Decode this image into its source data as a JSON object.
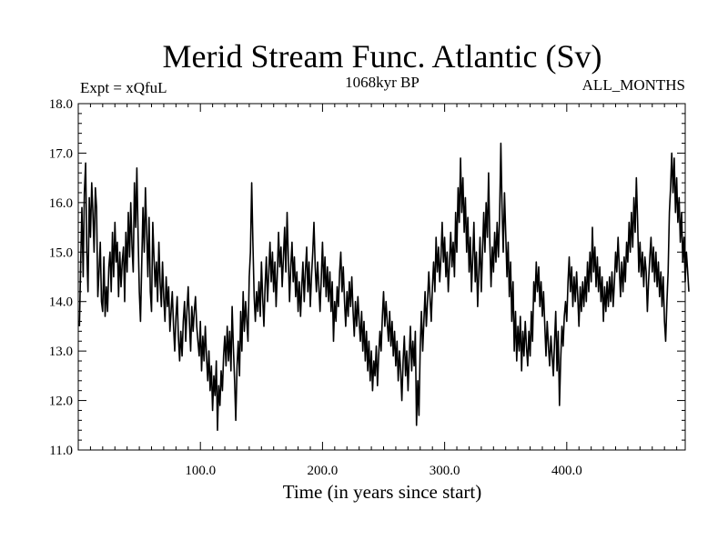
{
  "chart_data": {
    "type": "line",
    "title": "Merid Stream Func. Atlantic (Sv)",
    "left_note": "Expt = xQfuL",
    "center_note": "1068kyr BP",
    "right_note": "ALL_MONTHS",
    "xlabel": "Time (in years since start)",
    "ylabel": "",
    "xlim": [
      0,
      497
    ],
    "ylim": [
      11.0,
      18.0
    ],
    "xticks": [
      100,
      200,
      300,
      400
    ],
    "xtick_labels": [
      "100.0",
      "200.0",
      "300.0",
      "400.0"
    ],
    "yticks": [
      11,
      12,
      13,
      14,
      15,
      16,
      17,
      18
    ],
    "ytick_labels": [
      "11.0",
      "12.0",
      "13.0",
      "14.0",
      "15.0",
      "16.0",
      "17.0",
      "18.0"
    ],
    "grid": false,
    "line_color": "#000000",
    "series": [
      {
        "name": "Merid Stream Func. Atlantic",
        "x_start": 1,
        "x_step": 1,
        "values": [
          13.5,
          14.8,
          15.9,
          14.5,
          16.2,
          16.8,
          15.0,
          14.2,
          16.1,
          15.3,
          16.4,
          15.8,
          15.0,
          16.3,
          15.9,
          14.1,
          14.6,
          15.2,
          14.0,
          13.8,
          14.9,
          13.7,
          14.3,
          13.8,
          14.7,
          15.0,
          14.2,
          15.4,
          14.5,
          15.6,
          14.8,
          15.2,
          14.1,
          15.0,
          14.3,
          14.8,
          15.1,
          14.0,
          15.4,
          14.6,
          15.8,
          14.9,
          16.0,
          15.1,
          14.6,
          16.4,
          15.5,
          16.7,
          15.3,
          14.2,
          13.6,
          14.8,
          15.9,
          15.0,
          16.3,
          15.4,
          14.5,
          15.7,
          14.2,
          13.8,
          15.6,
          14.9,
          14.3,
          14.8,
          14.0,
          15.2,
          14.4,
          13.9,
          14.8,
          14.1,
          13.6,
          14.5,
          13.9,
          14.3,
          13.4,
          13.8,
          14.2,
          13.5,
          13.0,
          13.7,
          14.1,
          13.3,
          12.8,
          13.4,
          12.9,
          13.6,
          14.0,
          13.2,
          13.8,
          14.3,
          13.6,
          13.0,
          13.9,
          13.4,
          13.8,
          14.1,
          13.5,
          13.2,
          12.9,
          13.6,
          12.6,
          13.3,
          12.8,
          13.5,
          12.9,
          12.4,
          13.0,
          12.2,
          12.7,
          11.8,
          12.5,
          12.1,
          12.8,
          11.4,
          12.3,
          11.9,
          12.6,
          12.2,
          12.9,
          13.3,
          12.7,
          13.5,
          12.8,
          13.4,
          12.6,
          13.9,
          13.1,
          12.4,
          11.6,
          12.7,
          13.2,
          12.5,
          13.8,
          13.0,
          14.2,
          13.4,
          14.0,
          13.6,
          13.2,
          14.5,
          15.0,
          16.4,
          15.2,
          14.1,
          13.6,
          14.2,
          13.8,
          14.4,
          13.7,
          14.8,
          14.1,
          13.5,
          14.3,
          14.9,
          14.0,
          14.6,
          15.2,
          14.4,
          15.0,
          14.2,
          14.8,
          13.9,
          14.6,
          15.4,
          14.7,
          15.1,
          14.3,
          14.9,
          15.5,
          14.6,
          15.8,
          14.9,
          14.0,
          14.7,
          15.2,
          14.4,
          14.9,
          14.1,
          14.6,
          13.8,
          14.4,
          13.7,
          14.3,
          14.8,
          14.0,
          14.6,
          15.1,
          14.2,
          14.8,
          13.9,
          14.5,
          15.0,
          15.6,
          14.7,
          14.2,
          14.8,
          14.3,
          13.8,
          14.5,
          15.2,
          14.3,
          14.9,
          14.1,
          14.7,
          14.0,
          14.6,
          13.8,
          14.4,
          13.2,
          14.0,
          13.6,
          14.3,
          13.9,
          14.6,
          15.0,
          14.2,
          14.7,
          14.0,
          13.5,
          14.2,
          13.7,
          14.4,
          13.9,
          14.5,
          13.8,
          13.3,
          14.0,
          13.5,
          14.1,
          13.6,
          13.2,
          13.8,
          13.0,
          13.6,
          12.8,
          13.4,
          12.6,
          13.2,
          12.4,
          13.0,
          12.2,
          12.8,
          12.5,
          13.1,
          12.3,
          12.9,
          13.4,
          13.0,
          13.7,
          14.2,
          13.5,
          14.0,
          13.6,
          13.2,
          13.8,
          13.1,
          13.6,
          12.9,
          13.4,
          12.7,
          13.2,
          12.4,
          13.0,
          12.6,
          12.0,
          12.8,
          13.3,
          12.5,
          13.0,
          12.2,
          12.9,
          13.5,
          12.6,
          13.2,
          12.7,
          13.4,
          11.5,
          12.4,
          11.7,
          13.1,
          13.8,
          13.0,
          13.6,
          14.2,
          13.5,
          14.0,
          14.6,
          14.1,
          13.6,
          14.3,
          14.8,
          14.2,
          15.3,
          14.6,
          15.1,
          14.4,
          14.9,
          15.6,
          14.8,
          15.3,
          14.5,
          15.0,
          14.2,
          14.8,
          15.4,
          14.7,
          15.2,
          14.5,
          15.8,
          15.0,
          16.3,
          15.6,
          16.9,
          15.8,
          16.5,
          15.4,
          16.1,
          15.0,
          15.7,
          14.6,
          15.3,
          14.2,
          14.9,
          15.6,
          14.4,
          15.0,
          13.9,
          14.6,
          15.3,
          14.2,
          15.0,
          15.8,
          15.0,
          16.0,
          15.3,
          16.6,
          15.2,
          14.3,
          15.1,
          14.6,
          15.4,
          14.8,
          15.6,
          14.9,
          15.7,
          17.2,
          15.9,
          15.0,
          16.2,
          15.4,
          14.5,
          15.2,
          14.1,
          14.8,
          13.6,
          14.4,
          13.0,
          13.8,
          12.8,
          13.5,
          13.0,
          13.7,
          12.6,
          13.4,
          12.9,
          13.6,
          13.1,
          12.7,
          13.4,
          12.9,
          13.8,
          13.2,
          14.4,
          14.0,
          14.8,
          14.2,
          14.7,
          13.9,
          14.4,
          13.7,
          14.2,
          13.5,
          12.9,
          13.6,
          13.1,
          12.7,
          13.3,
          12.9,
          12.5,
          13.2,
          13.8,
          12.6,
          13.4,
          11.9,
          12.8,
          13.5,
          13.1,
          13.7,
          14.0,
          13.6,
          14.4,
          14.9,
          14.2,
          14.7,
          13.9,
          14.5,
          14.0,
          14.6,
          14.1,
          13.5,
          14.3,
          13.8,
          14.4,
          13.9,
          14.5,
          14.0,
          14.8,
          14.2,
          15.0,
          14.4,
          15.5,
          14.6,
          15.1,
          14.3,
          14.9,
          14.2,
          14.7,
          14.0,
          14.5,
          13.6,
          14.3,
          13.8,
          14.4,
          13.9,
          14.5,
          14.0,
          14.6,
          13.9,
          14.4,
          15.0,
          14.6,
          15.3,
          14.7,
          14.1,
          14.8,
          14.2,
          14.9,
          14.4,
          15.2,
          14.8,
          15.6,
          15.0,
          15.8,
          15.1,
          16.1,
          15.4,
          16.5,
          15.6,
          14.6,
          15.2,
          14.5,
          15.0,
          14.3,
          14.9,
          14.6,
          13.8,
          14.4,
          14.9,
          15.3,
          14.6,
          15.1,
          14.4,
          15.0,
          14.3,
          14.8,
          14.1,
          14.6,
          13.9,
          14.5,
          13.6,
          13.2,
          14.0,
          14.6,
          15.8,
          16.3,
          17.0,
          16.2,
          16.9,
          15.8,
          16.5,
          15.6,
          16.1,
          15.2,
          15.8,
          14.8,
          15.3,
          14.4,
          15.0,
          14.6,
          14.2
        ]
      }
    ]
  }
}
